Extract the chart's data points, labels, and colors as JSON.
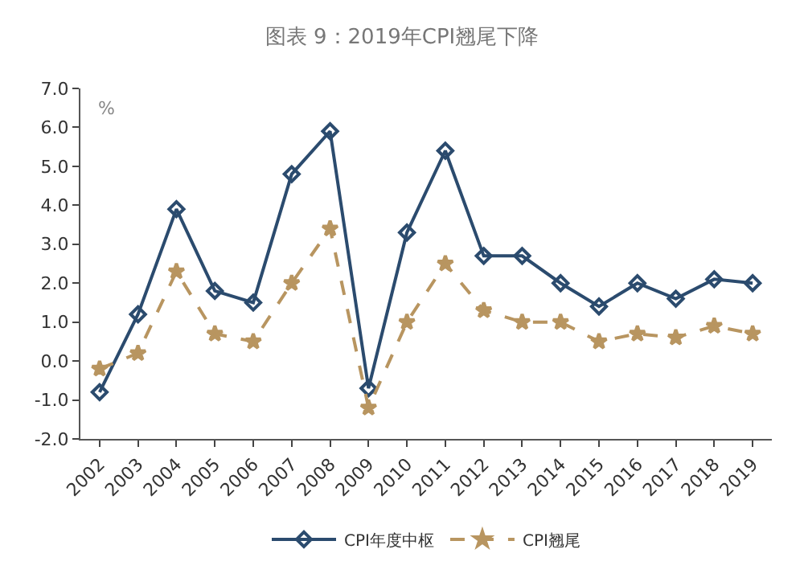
{
  "chart_data": {
    "type": "line",
    "title": "图表 9：2019年CPI翘尾下降",
    "ylabel": "%",
    "categories": [
      "2002",
      "2003",
      "2004",
      "2005",
      "2006",
      "2007",
      "2008",
      "2009",
      "2010",
      "2011",
      "2012",
      "2013",
      "2014",
      "2015",
      "2016",
      "2017",
      "2018",
      "2019"
    ],
    "series": [
      {
        "name": "CPI年度中枢",
        "color": "#2b4b6e",
        "marker": "diamond",
        "line_style": "solid",
        "values": [
          -0.8,
          1.2,
          3.9,
          1.8,
          1.5,
          4.8,
          5.9,
          -0.7,
          3.3,
          5.4,
          2.7,
          2.7,
          2.0,
          1.4,
          2.0,
          1.6,
          2.1,
          2.0
        ]
      },
      {
        "name": "CPI翘尾",
        "color": "#b89560",
        "marker": "star",
        "line_style": "dashed",
        "values": [
          -0.2,
          0.2,
          2.3,
          0.7,
          0.5,
          2.0,
          3.4,
          -1.2,
          1.0,
          2.5,
          1.3,
          1.0,
          1.0,
          0.5,
          0.7,
          0.6,
          0.9,
          0.7
        ]
      }
    ],
    "ylim": [
      -2,
      7
    ],
    "yticks": [
      {
        "value": -2,
        "label": "-2.0"
      },
      {
        "value": -1,
        "label": "-1.0"
      },
      {
        "value": 0,
        "label": "0.0"
      },
      {
        "value": 1,
        "label": "1.0"
      },
      {
        "value": 2,
        "label": "2.0"
      },
      {
        "value": 3,
        "label": "3.0"
      },
      {
        "value": 4,
        "label": "4.0"
      },
      {
        "value": 5,
        "label": "5.0"
      },
      {
        "value": 6,
        "label": "6.0"
      },
      {
        "value": 7,
        "label": "7.0"
      }
    ],
    "grid": false,
    "legend": "bottom"
  }
}
